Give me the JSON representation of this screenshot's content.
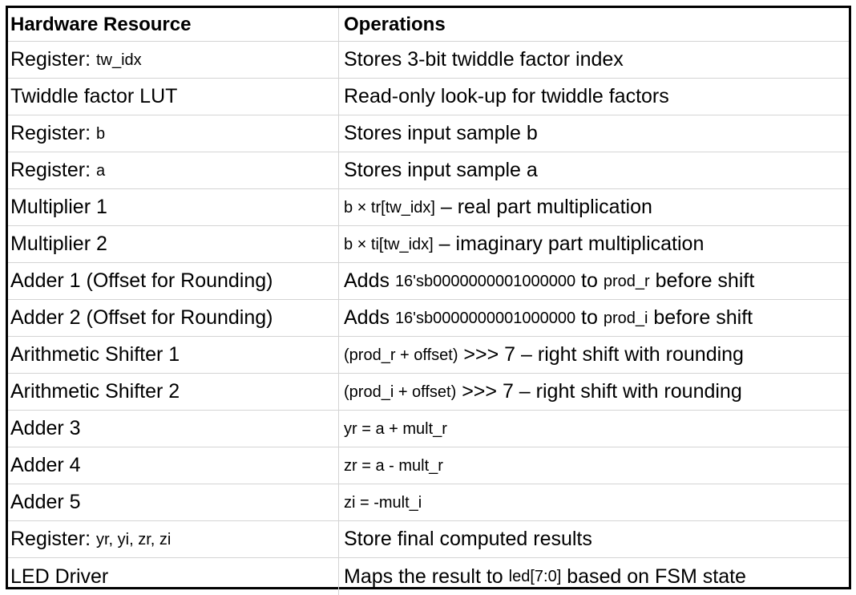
{
  "headers": {
    "resource": "Hardware Resource",
    "operations": "Operations"
  },
  "rows": [
    {
      "resource": [
        "Register: ",
        "tw_idx"
      ],
      "operations": [
        "Stores 3-bit twiddle factor index"
      ]
    },
    {
      "resource": [
        "Twiddle factor LUT"
      ],
      "operations": [
        "Read-only look-up for twiddle factors"
      ]
    },
    {
      "resource": [
        "Register: ",
        "b"
      ],
      "operations": [
        "Stores input sample b"
      ]
    },
    {
      "resource": [
        "Register: ",
        "a"
      ],
      "operations": [
        "Stores input sample a"
      ]
    },
    {
      "resource": [
        "Multiplier 1"
      ],
      "operations": [
        "b × tr[tw_idx]",
        " – real part multiplication"
      ]
    },
    {
      "resource": [
        "Multiplier 2"
      ],
      "operations": [
        "b × ti[tw_idx]",
        " – imaginary part multiplication"
      ]
    },
    {
      "resource": [
        "Adder 1 (Offset for Rounding)"
      ],
      "operations": [
        "Adds ",
        "16'sb0000000001000000",
        " to ",
        "prod_r",
        " before shift"
      ]
    },
    {
      "resource": [
        "Adder 2 (Offset for Rounding)"
      ],
      "operations": [
        "Adds ",
        "16'sb0000000001000000",
        " to ",
        "prod_i",
        " before shift"
      ]
    },
    {
      "resource": [
        "Arithmetic Shifter 1"
      ],
      "operations": [
        "(prod_r + offset)",
        " >>> 7 – right shift with rounding"
      ]
    },
    {
      "resource": [
        "Arithmetic Shifter 2"
      ],
      "operations": [
        "(prod_i + offset)",
        " >>> 7 – right shift with rounding"
      ]
    },
    {
      "resource": [
        "Adder 3"
      ],
      "operations": [
        "yr = a + mult_r"
      ]
    },
    {
      "resource": [
        "Adder 4"
      ],
      "operations": [
        "zr = a - mult_r"
      ]
    },
    {
      "resource": [
        "Adder 5"
      ],
      "operations": [
        "zi = -mult_i"
      ]
    },
    {
      "resource": [
        "Register: ",
        "yr, yi, zr, zi"
      ],
      "operations": [
        "Store final computed results"
      ]
    },
    {
      "resource": [
        "LED Driver"
      ],
      "operations": [
        "Maps the result to ",
        "led[7:0]",
        " based on FSM state"
      ]
    }
  ]
}
